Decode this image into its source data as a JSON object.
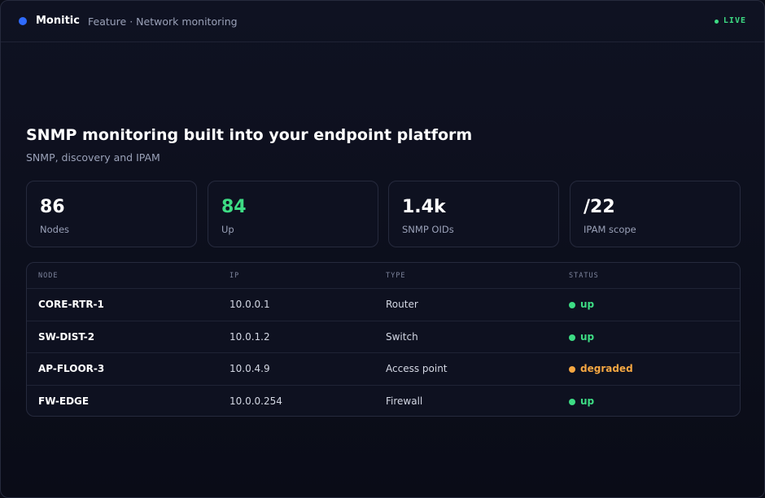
{
  "header": {
    "brand": "Monitic",
    "breadcrumb": "Feature · Network monitoring",
    "live": "LIVE"
  },
  "hero": {
    "title": "SNMP monitoring built into your endpoint platform",
    "subtitle": "SNMP, discovery and IPAM"
  },
  "stats": [
    {
      "value": "86",
      "label": "Nodes",
      "color": "#ffffff"
    },
    {
      "value": "84",
      "label": "Up",
      "color": "#3ddc84"
    },
    {
      "value": "1.4k",
      "label": "SNMP OIDs",
      "color": "#ffffff"
    },
    {
      "value": "/22",
      "label": "IPAM scope",
      "color": "#ffffff"
    }
  ],
  "table": {
    "columns": [
      "NODE",
      "IP",
      "TYPE",
      "STATUS"
    ],
    "rows": [
      {
        "node": "CORE-RTR-1",
        "ip": "10.0.0.1",
        "type": "Router",
        "status": {
          "label": "up",
          "color": "#3ddc84"
        }
      },
      {
        "node": "SW-DIST-2",
        "ip": "10.0.1.2",
        "type": "Switch",
        "status": {
          "label": "up",
          "color": "#3ddc84"
        }
      },
      {
        "node": "AP-FLOOR-3",
        "ip": "10.0.4.9",
        "type": "Access point",
        "status": {
          "label": "degraded",
          "color": "#f5a742"
        }
      },
      {
        "node": "FW-EDGE",
        "ip": "10.0.0.254",
        "type": "Firewall",
        "status": {
          "label": "up",
          "color": "#3ddc84"
        }
      }
    ]
  }
}
